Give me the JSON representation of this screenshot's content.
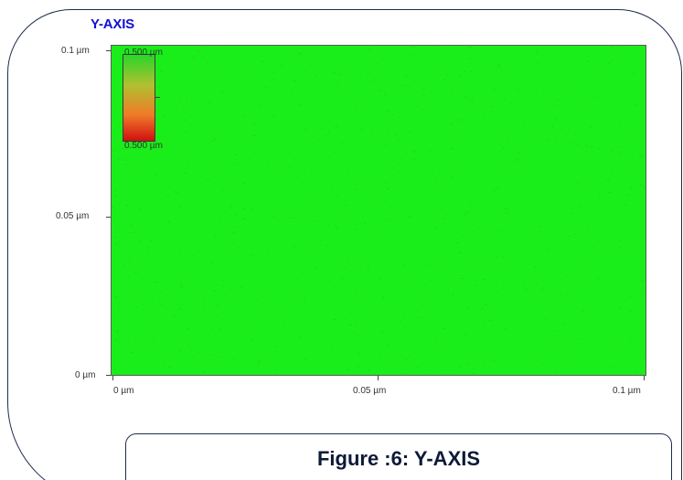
{
  "header": {
    "label": "Y-AXIS"
  },
  "chart_data": {
    "type": "heatmap",
    "title": "",
    "x_ticks": [
      "0 µm",
      "0.05 µm",
      "0.1 µm"
    ],
    "y_ticks": [
      "0 µm",
      "0.05 µm",
      "0.1 µm"
    ],
    "xlim": [
      0,
      0.1
    ],
    "ylim": [
      0,
      0.1
    ],
    "units": "µm",
    "fill_color": "#1aee1a",
    "values_description_level": 0.5,
    "colorbar": {
      "top_label": "0.500 µm",
      "bottom_label": "0.500 µm",
      "colors": [
        "#28d628",
        "#b0c030",
        "#f07a28",
        "#d01010"
      ]
    }
  },
  "caption": {
    "text": "Figure :6: Y-AXIS"
  }
}
